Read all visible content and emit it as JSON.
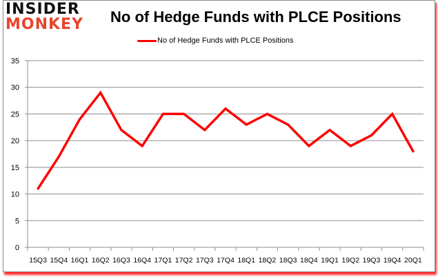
{
  "logo": {
    "line1": "INSIDER",
    "line2": "MONKEY"
  },
  "colors": {
    "series": "#ff0000",
    "grid": "#8c8c8c",
    "logo_red": "#e8452c",
    "shadow": "#ff0000"
  },
  "chart_data": {
    "type": "line",
    "title": "No of Hedge Funds with PLCE Positions",
    "xlabel": "",
    "ylabel": "",
    "ylim": [
      0,
      35
    ],
    "yticks": [
      0,
      5,
      10,
      15,
      20,
      25,
      30,
      35
    ],
    "grid": true,
    "legend_position": "top",
    "categories": [
      "15Q3",
      "15Q4",
      "16Q1",
      "16Q2",
      "16Q3",
      "16Q4",
      "17Q1",
      "17Q2",
      "17Q3",
      "17Q4",
      "18Q1",
      "18Q2",
      "18Q3",
      "18Q4",
      "19Q1",
      "19Q2",
      "19Q3",
      "19Q4",
      "20Q1"
    ],
    "series": [
      {
        "name": "No of Hedge Funds with PLCE Positions",
        "color": "#ff0000",
        "values": [
          11,
          17,
          24,
          29,
          22,
          19,
          25,
          25,
          22,
          26,
          23,
          25,
          23,
          19,
          22,
          19,
          21,
          25,
          18
        ]
      }
    ]
  }
}
